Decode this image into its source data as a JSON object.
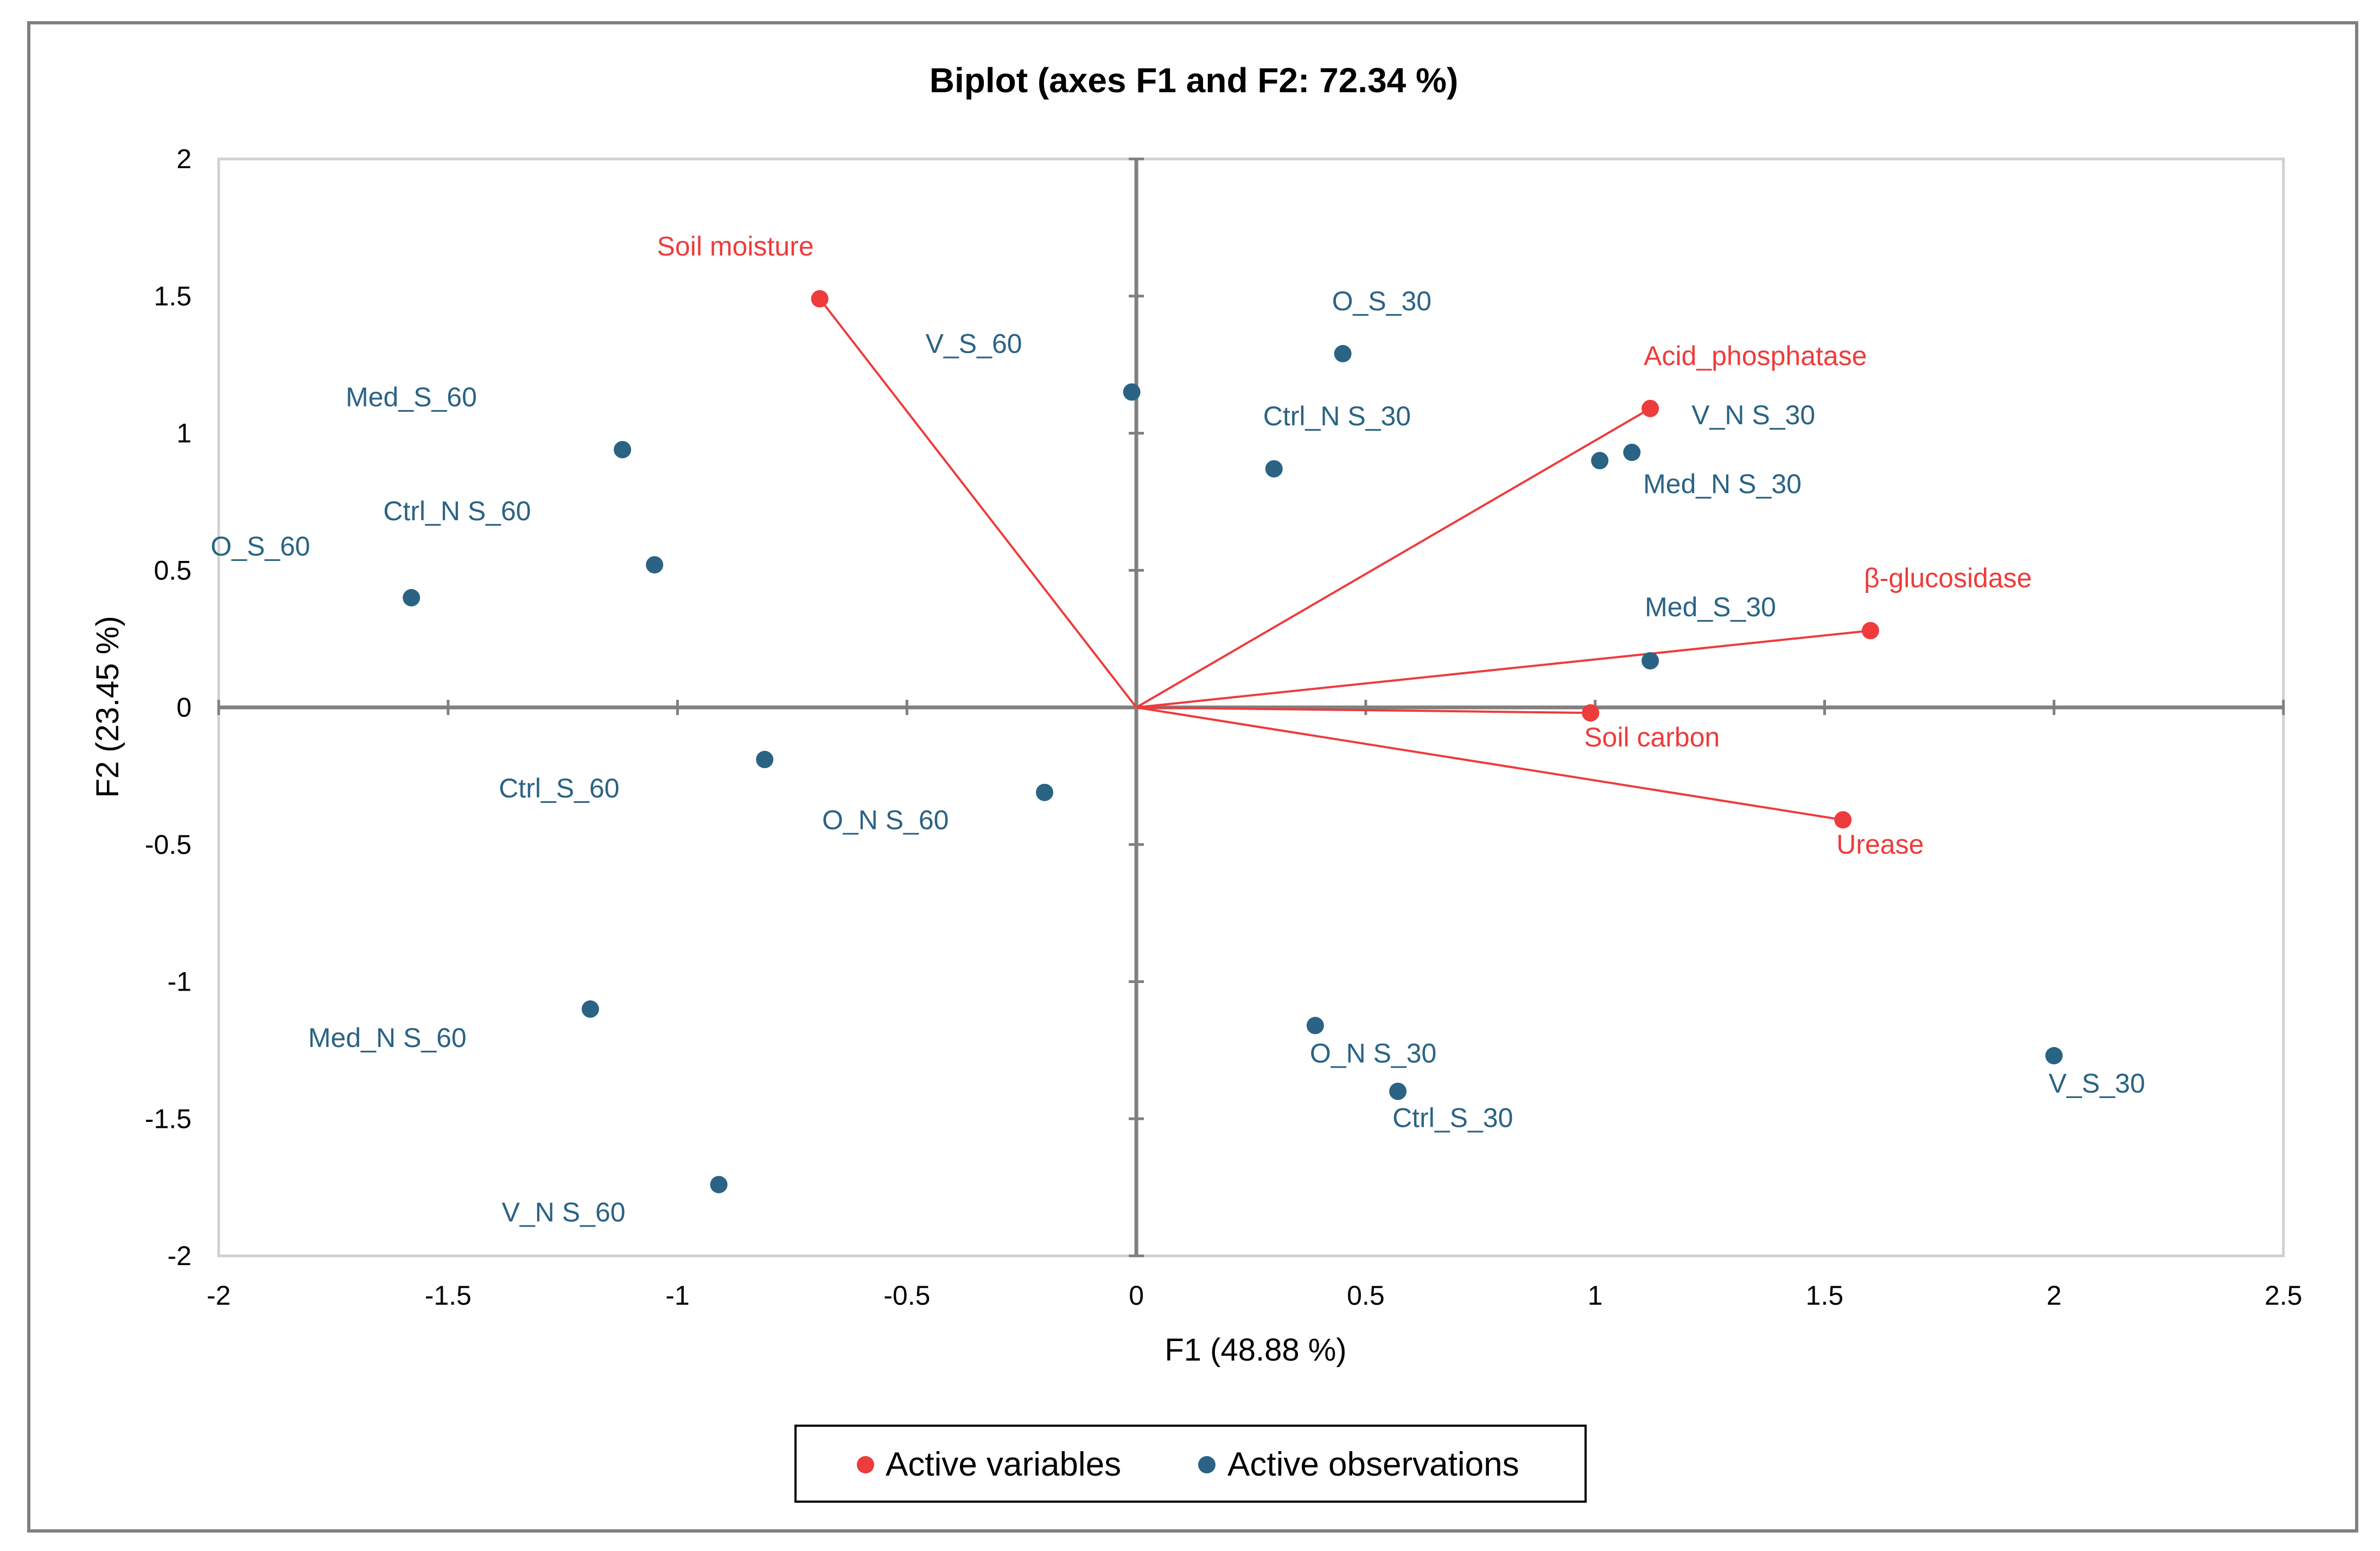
{
  "colors": {
    "variable": "#ee3b3b",
    "observation": "#2a6384",
    "axis": "#808080",
    "frame": "#d0d0d0",
    "outer_border": "#808080"
  },
  "chart_data": {
    "type": "scatter",
    "title": "Biplot (axes F1 and F2: 72.34 %)",
    "xlabel": "F1 (48.88 %)",
    "ylabel": "F2 (23.45 %)",
    "xlim": [
      -2,
      2.5
    ],
    "ylim": [
      -2,
      2
    ],
    "xticks": [
      -2,
      -1.5,
      -1,
      -0.5,
      0,
      0.5,
      1,
      1.5,
      2,
      2.5
    ],
    "yticks": [
      -2,
      -1.5,
      -1,
      -0.5,
      0,
      0.5,
      1,
      1.5,
      2
    ],
    "xtick_labels": [
      "-2",
      "-1.5",
      "-1",
      "-0.5",
      "0",
      "0.5",
      "1",
      "1.5",
      "2",
      "2.5"
    ],
    "ytick_labels": [
      "-2",
      "-1.5",
      "-1",
      "-0.5",
      "0",
      "0.5",
      "1",
      "1.5",
      "2"
    ],
    "legend": {
      "position": "bottom",
      "entries": [
        {
          "label": "Active variables",
          "series": "variables"
        },
        {
          "label": "Active observations",
          "series": "observations"
        }
      ]
    },
    "variables": [
      {
        "label": "Soil moisture",
        "x": -0.69,
        "y": 1.49
      },
      {
        "label": "Acid_phosphatase",
        "x": 1.12,
        "y": 1.09
      },
      {
        "label": "β-glucosidase",
        "x": 1.6,
        "y": 0.28
      },
      {
        "label": "Soil carbon",
        "x": 0.99,
        "y": -0.02
      },
      {
        "label": "Urease",
        "x": 1.54,
        "y": -0.41
      }
    ],
    "observations": [
      {
        "label": "V_S_60",
        "x": -0.01,
        "y": 1.15
      },
      {
        "label": "O_S_30",
        "x": 0.45,
        "y": 1.29
      },
      {
        "label": "Ctrl_N S_30",
        "x": 0.3,
        "y": 0.87
      },
      {
        "label": "V_N S_30",
        "x": 1.08,
        "y": 0.93
      },
      {
        "label": "Med_N S_30",
        "x": 1.01,
        "y": 0.9
      },
      {
        "label": "Med_S_30",
        "x": 1.12,
        "y": 0.17
      },
      {
        "label": "Med_S_60",
        "x": -1.12,
        "y": 0.94
      },
      {
        "label": "Ctrl_N S_60",
        "x": -1.05,
        "y": 0.52
      },
      {
        "label": "O_S_60",
        "x": -1.58,
        "y": 0.4
      },
      {
        "label": "Ctrl_S_60",
        "x": -0.81,
        "y": -0.19
      },
      {
        "label": "O_N S_60",
        "x": -0.2,
        "y": -0.31
      },
      {
        "label": "Med_N S_60",
        "x": -1.19,
        "y": -1.1
      },
      {
        "label": "V_N S_60",
        "x": -0.91,
        "y": -1.74
      },
      {
        "label": "O_N S_30",
        "x": 0.39,
        "y": -1.16
      },
      {
        "label": "Ctrl_S_30",
        "x": 0.57,
        "y": -1.4
      },
      {
        "label": "V_S_30",
        "x": 2.0,
        "y": -1.27
      }
    ]
  }
}
